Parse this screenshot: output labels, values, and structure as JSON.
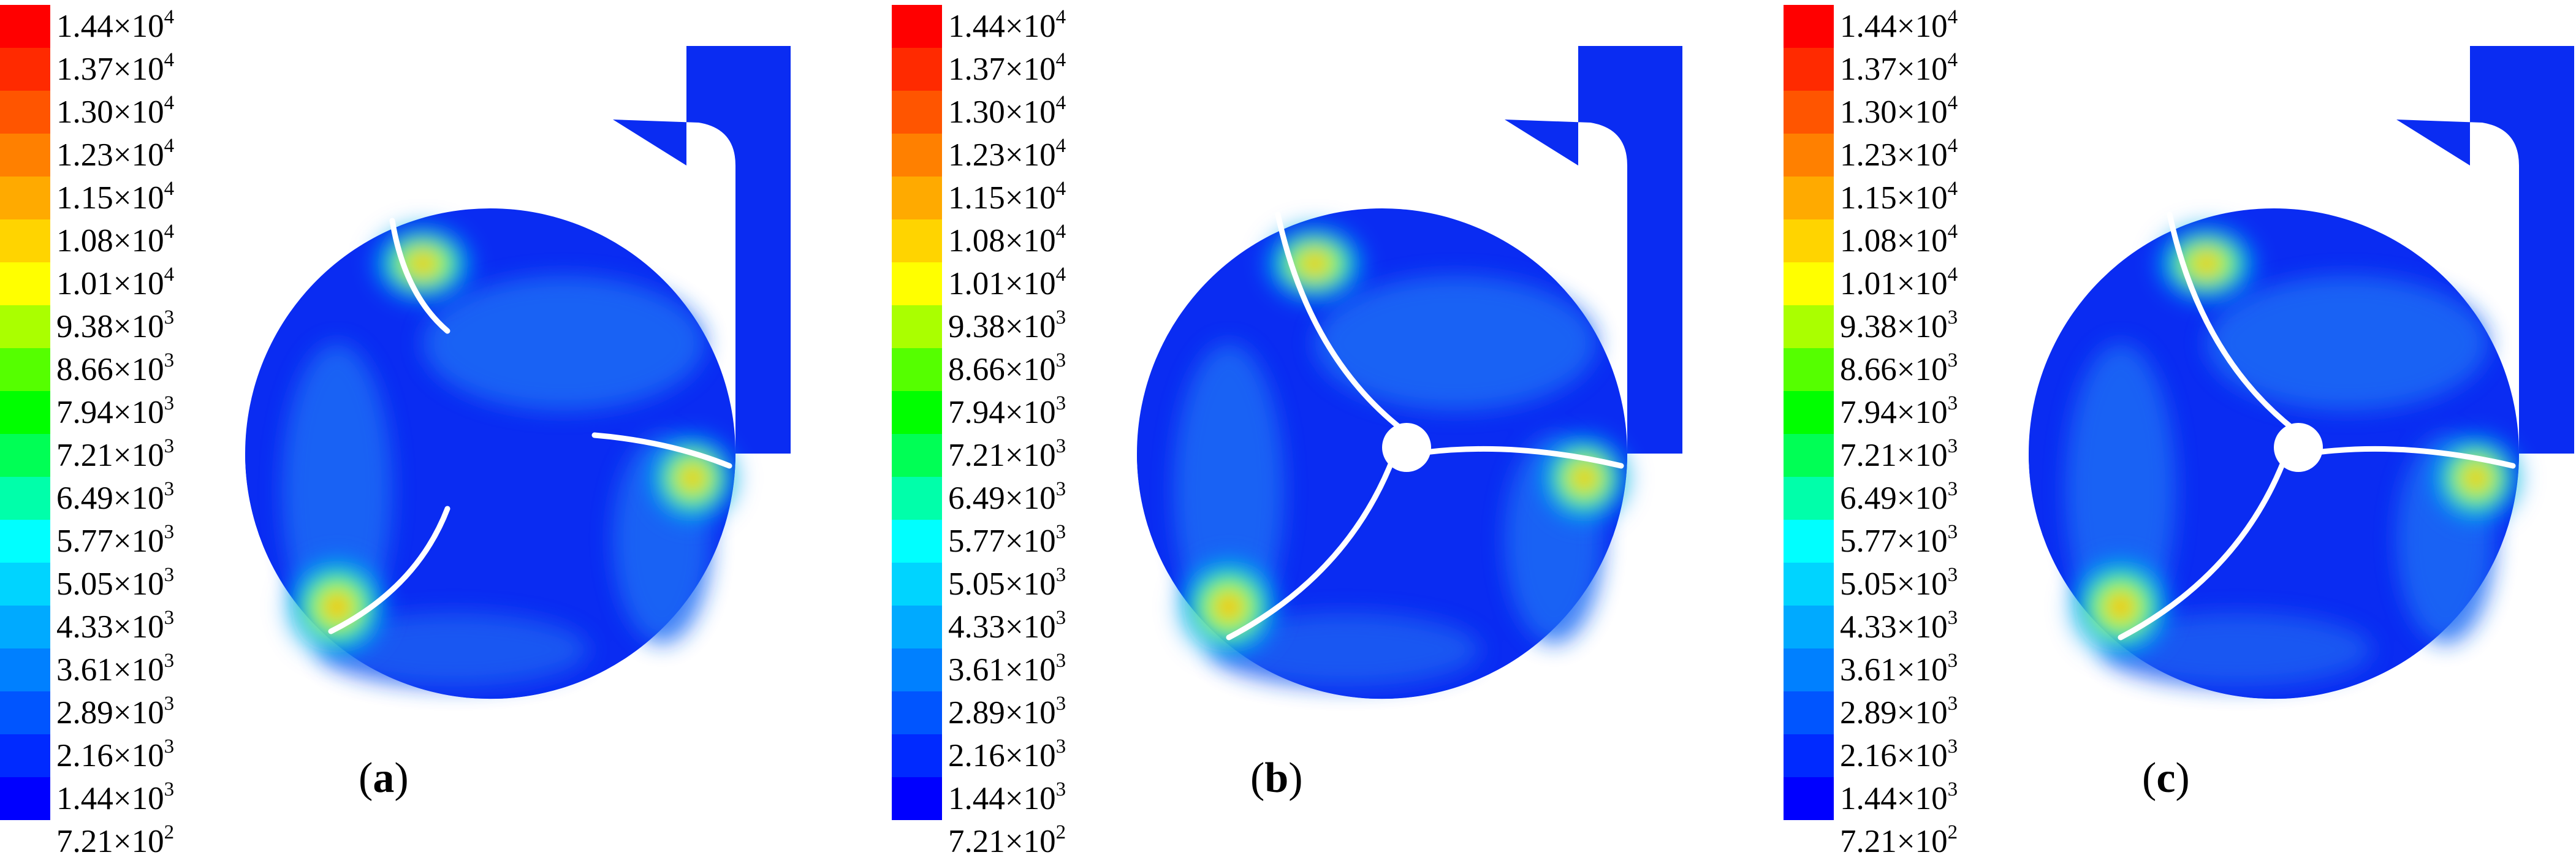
{
  "legend": {
    "colors": [
      "#ff0000",
      "#ff2a00",
      "#ff5500",
      "#ff8000",
      "#ffaa00",
      "#ffd400",
      "#ffff00",
      "#aaff00",
      "#55ff00",
      "#00ff00",
      "#00ff55",
      "#00ffaa",
      "#00ffff",
      "#00d4ff",
      "#00aaff",
      "#0080ff",
      "#0055ff",
      "#002aff",
      "#0000ff"
    ],
    "levels": [
      {
        "mantissa": "1.44",
        "exponent": "4"
      },
      {
        "mantissa": "1.37",
        "exponent": "4"
      },
      {
        "mantissa": "1.30",
        "exponent": "4"
      },
      {
        "mantissa": "1.23",
        "exponent": "4"
      },
      {
        "mantissa": "1.15",
        "exponent": "4"
      },
      {
        "mantissa": "1.08",
        "exponent": "4"
      },
      {
        "mantissa": "1.01",
        "exponent": "4"
      },
      {
        "mantissa": "9.38",
        "exponent": "3"
      },
      {
        "mantissa": "8.66",
        "exponent": "3"
      },
      {
        "mantissa": "7.94",
        "exponent": "3"
      },
      {
        "mantissa": "7.21",
        "exponent": "3"
      },
      {
        "mantissa": "6.49",
        "exponent": "3"
      },
      {
        "mantissa": "5.77",
        "exponent": "3"
      },
      {
        "mantissa": "5.05",
        "exponent": "3"
      },
      {
        "mantissa": "4.33",
        "exponent": "3"
      },
      {
        "mantissa": "3.61",
        "exponent": "3"
      },
      {
        "mantissa": "2.89",
        "exponent": "3"
      },
      {
        "mantissa": "2.16",
        "exponent": "3"
      },
      {
        "mantissa": "1.44",
        "exponent": "3"
      },
      {
        "mantissa": "7.21",
        "exponent": "2"
      }
    ],
    "times": "×10"
  },
  "panels": [
    {
      "letter": "a",
      "hub": false
    },
    {
      "letter": "b",
      "hub": true
    },
    {
      "letter": "c",
      "hub": true
    }
  ],
  "caption_parts": {
    "open": "(",
    "close": ")"
  }
}
